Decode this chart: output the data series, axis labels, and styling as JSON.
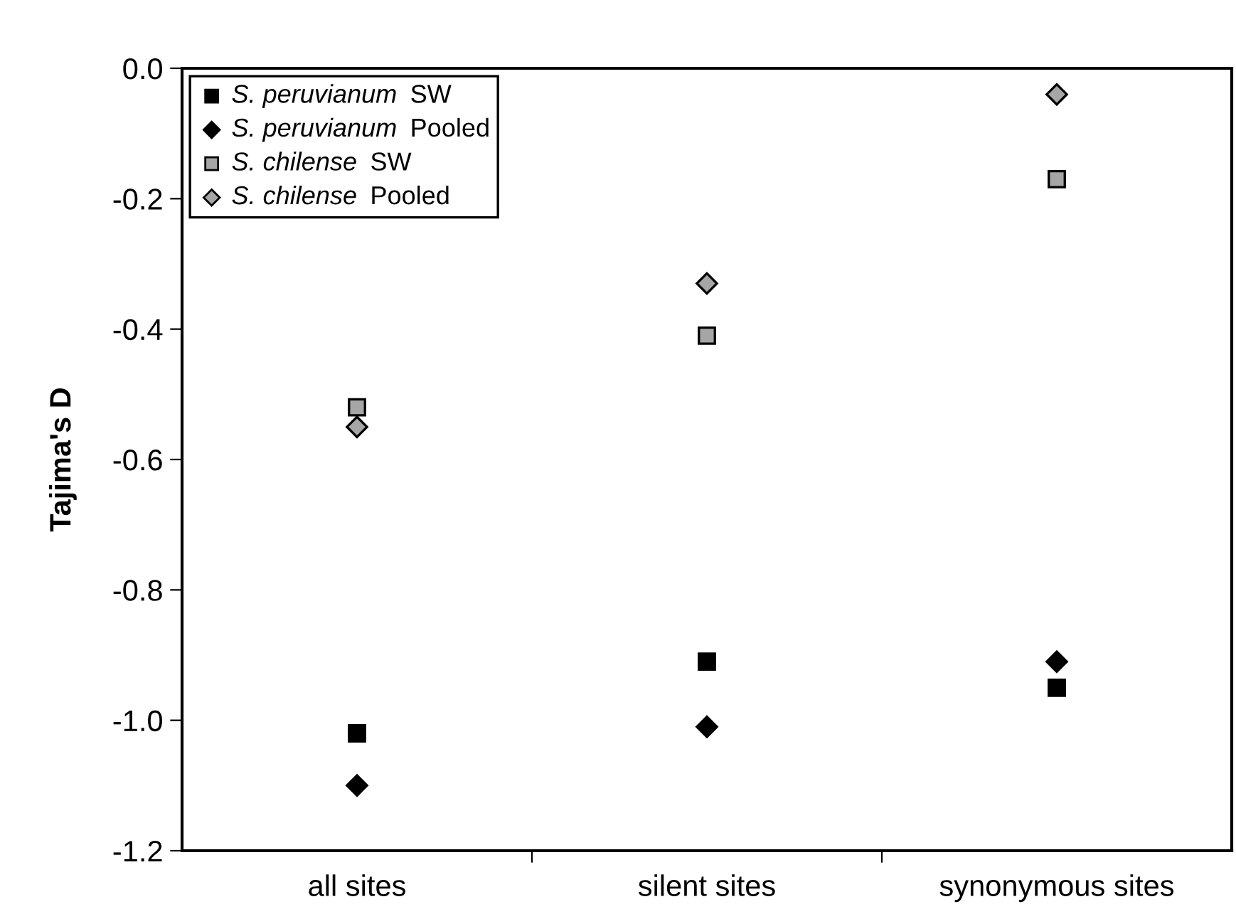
{
  "chart_data": {
    "type": "scatter",
    "ylabel": "Tajima's D",
    "categories": [
      "all sites",
      "silent sites",
      "synonymous sites"
    ],
    "ylim": [
      -1.2,
      0.0
    ],
    "yticks": [
      {
        "value": -1.2,
        "label": "-1.2"
      },
      {
        "value": -1.0,
        "label": "-1.0"
      },
      {
        "value": -0.8,
        "label": "-0.8"
      },
      {
        "value": -0.6,
        "label": "-0.6"
      },
      {
        "value": -0.4,
        "label": "-0.4"
      },
      {
        "value": -0.2,
        "label": "-0.2"
      },
      {
        "value": 0.0,
        "label": "0.0"
      }
    ],
    "grid": false,
    "legend": "top left",
    "series": [
      {
        "name": "S. peruvianum SW",
        "color": "#000000",
        "marker": "square",
        "values": [
          -1.02,
          -0.91,
          -0.95
        ]
      },
      {
        "name": "S. peruvianum Pooled",
        "color": "#000000",
        "marker": "diamond",
        "values": [
          -1.1,
          -1.01,
          -0.91
        ]
      },
      {
        "name": "S. chilense SW",
        "color": "#a6a6a6",
        "marker": "square",
        "values": [
          -0.52,
          -0.41,
          -0.17
        ]
      },
      {
        "name": "S. chilense Pooled",
        "color": "#a6a6a6",
        "marker": "diamond",
        "values": [
          -0.55,
          -0.33,
          -0.04
        ]
      }
    ]
  }
}
